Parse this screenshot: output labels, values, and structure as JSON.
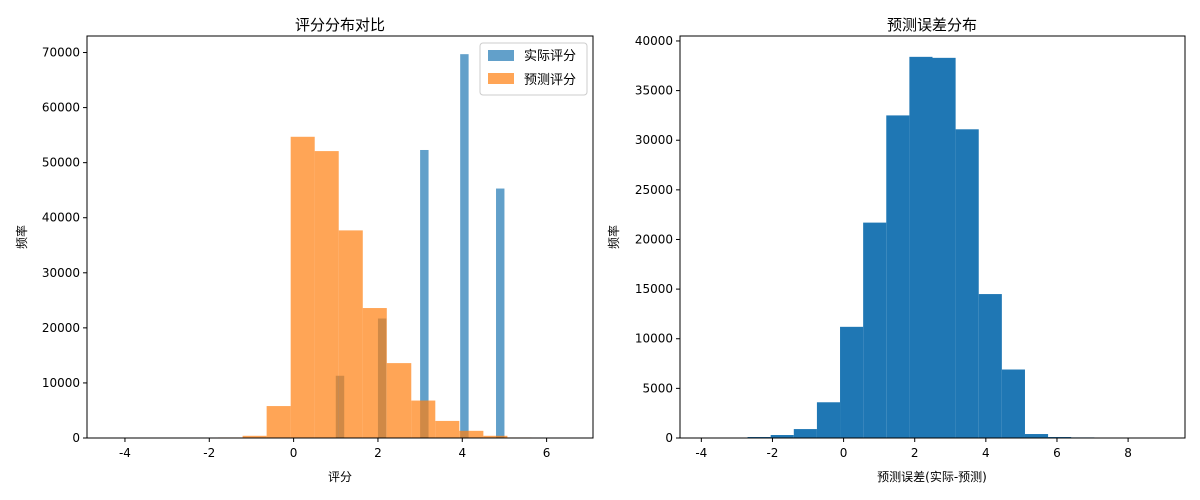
{
  "chart_data": [
    {
      "type": "bar",
      "title": "评分分布对比",
      "xlabel": "评分",
      "ylabel": "频率",
      "xlim": [
        -4.9,
        7.1
      ],
      "ylim": [
        0,
        73000
      ],
      "xticks": [
        -4,
        -2,
        0,
        2,
        4,
        6
      ],
      "yticks": [
        0,
        10000,
        20000,
        30000,
        40000,
        50000,
        60000,
        70000
      ],
      "legend_position": "top-right",
      "grid": false,
      "series": [
        {
          "name": "实际评分",
          "color": "#1f77b4",
          "alpha": 0.7,
          "bins": [
            {
              "x0": 1.0,
              "x1": 1.2,
              "count": 11300
            },
            {
              "x0": 2.0,
              "x1": 2.2,
              "count": 21700
            },
            {
              "x0": 3.0,
              "x1": 3.2,
              "count": 52300
            },
            {
              "x0": 3.95,
              "x1": 4.15,
              "count": 69700
            },
            {
              "x0": 4.8,
              "x1": 5.0,
              "count": 45300
            }
          ]
        },
        {
          "name": "预测评分",
          "color": "#ff7f0e",
          "alpha": 0.7,
          "bins": [
            {
              "x0": -4.07,
              "x1": -3.5,
              "count": 0
            },
            {
              "x0": -3.5,
              "x1": -2.93,
              "count": 0
            },
            {
              "x0": -2.93,
              "x1": -2.36,
              "count": 0
            },
            {
              "x0": -2.36,
              "x1": -1.79,
              "count": 0
            },
            {
              "x0": -1.79,
              "x1": -1.21,
              "count": 100
            },
            {
              "x0": -1.21,
              "x1": -0.64,
              "count": 400
            },
            {
              "x0": -0.64,
              "x1": -0.07,
              "count": 5800
            },
            {
              "x0": -0.07,
              "x1": 0.5,
              "count": 54700
            },
            {
              "x0": 0.5,
              "x1": 1.07,
              "count": 52100
            },
            {
              "x0": 1.07,
              "x1": 1.64,
              "count": 37700
            },
            {
              "x0": 1.64,
              "x1": 2.21,
              "count": 23600
            },
            {
              "x0": 2.21,
              "x1": 2.79,
              "count": 13600
            },
            {
              "x0": 2.79,
              "x1": 3.36,
              "count": 6800
            },
            {
              "x0": 3.36,
              "x1": 3.93,
              "count": 3100
            },
            {
              "x0": 3.93,
              "x1": 4.5,
              "count": 1300
            },
            {
              "x0": 4.5,
              "x1": 5.07,
              "count": 400
            },
            {
              "x0": 5.07,
              "x1": 5.64,
              "count": 100
            },
            {
              "x0": 5.64,
              "x1": 6.21,
              "count": 0
            },
            {
              "x0": 6.21,
              "x1": 6.79,
              "count": 0
            }
          ]
        }
      ]
    },
    {
      "type": "bar",
      "title": "预测误差分布",
      "xlabel": "预测误差(实际-预测)",
      "ylabel": "频率",
      "xlim": [
        -4.6,
        9.6
      ],
      "ylim": [
        0,
        40500
      ],
      "xticks": [
        -4,
        -2,
        0,
        2,
        4,
        6,
        8
      ],
      "yticks": [
        0,
        5000,
        10000,
        15000,
        20000,
        25000,
        30000,
        35000,
        40000
      ],
      "grid": false,
      "series": [
        {
          "color": "#1f77b4",
          "alpha": 1.0,
          "bins": [
            {
              "x0": -4.0,
              "x1": -3.35,
              "count": 0
            },
            {
              "x0": -3.35,
              "x1": -2.7,
              "count": 30
            },
            {
              "x0": -2.7,
              "x1": -2.05,
              "count": 100
            },
            {
              "x0": -2.05,
              "x1": -1.4,
              "count": 300
            },
            {
              "x0": -1.4,
              "x1": -0.75,
              "count": 900
            },
            {
              "x0": -0.75,
              "x1": -0.1,
              "count": 3600
            },
            {
              "x0": -0.1,
              "x1": 0.55,
              "count": 11200
            },
            {
              "x0": 0.55,
              "x1": 1.2,
              "count": 21700
            },
            {
              "x0": 1.2,
              "x1": 1.85,
              "count": 32500
            },
            {
              "x0": 1.85,
              "x1": 2.5,
              "count": 38400
            },
            {
              "x0": 2.5,
              "x1": 3.15,
              "count": 38300
            },
            {
              "x0": 3.15,
              "x1": 3.8,
              "count": 31100
            },
            {
              "x0": 3.8,
              "x1": 4.45,
              "count": 14500
            },
            {
              "x0": 4.45,
              "x1": 5.1,
              "count": 6900
            },
            {
              "x0": 5.1,
              "x1": 5.75,
              "count": 400
            },
            {
              "x0": 5.75,
              "x1": 6.4,
              "count": 100
            },
            {
              "x0": 6.4,
              "x1": 7.05,
              "count": 60
            },
            {
              "x0": 7.05,
              "x1": 7.7,
              "count": 20
            },
            {
              "x0": 7.7,
              "x1": 8.35,
              "count": 0
            },
            {
              "x0": 8.35,
              "x1": 9.0,
              "count": 0
            }
          ]
        }
      ]
    }
  ]
}
